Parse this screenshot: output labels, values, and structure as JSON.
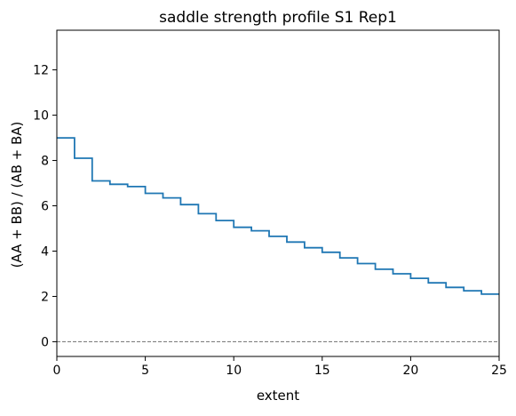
{
  "chart_data": {
    "type": "line",
    "style": "step-post",
    "title": "saddle strength profile S1 Rep1",
    "xlabel": "extent",
    "ylabel": "(AA + BB) / (AB + BA)",
    "xlim": [
      0,
      25
    ],
    "ylim": [
      -0.65,
      13.75
    ],
    "xticks": [
      0,
      5,
      10,
      15,
      20,
      25
    ],
    "yticks": [
      0,
      2,
      4,
      6,
      8,
      10,
      12
    ],
    "grid": false,
    "legend": "none",
    "reference_line": {
      "y": 0,
      "style": "dashed",
      "color": "#808080"
    },
    "series": [
      {
        "color": "#1f77b4",
        "x": [
          0,
          1,
          2,
          3,
          4,
          5,
          6,
          7,
          8,
          9,
          10,
          11,
          12,
          13,
          14,
          15,
          16,
          17,
          18,
          19,
          20,
          21,
          22,
          23,
          24
        ],
        "values": [
          9.0,
          8.1,
          7.1,
          6.95,
          6.85,
          6.55,
          6.35,
          6.05,
          5.65,
          5.35,
          5.05,
          4.9,
          4.65,
          4.4,
          4.15,
          3.95,
          3.7,
          3.45,
          3.2,
          3.0,
          2.8,
          2.6,
          2.4,
          2.25,
          2.1
        ]
      }
    ]
  }
}
